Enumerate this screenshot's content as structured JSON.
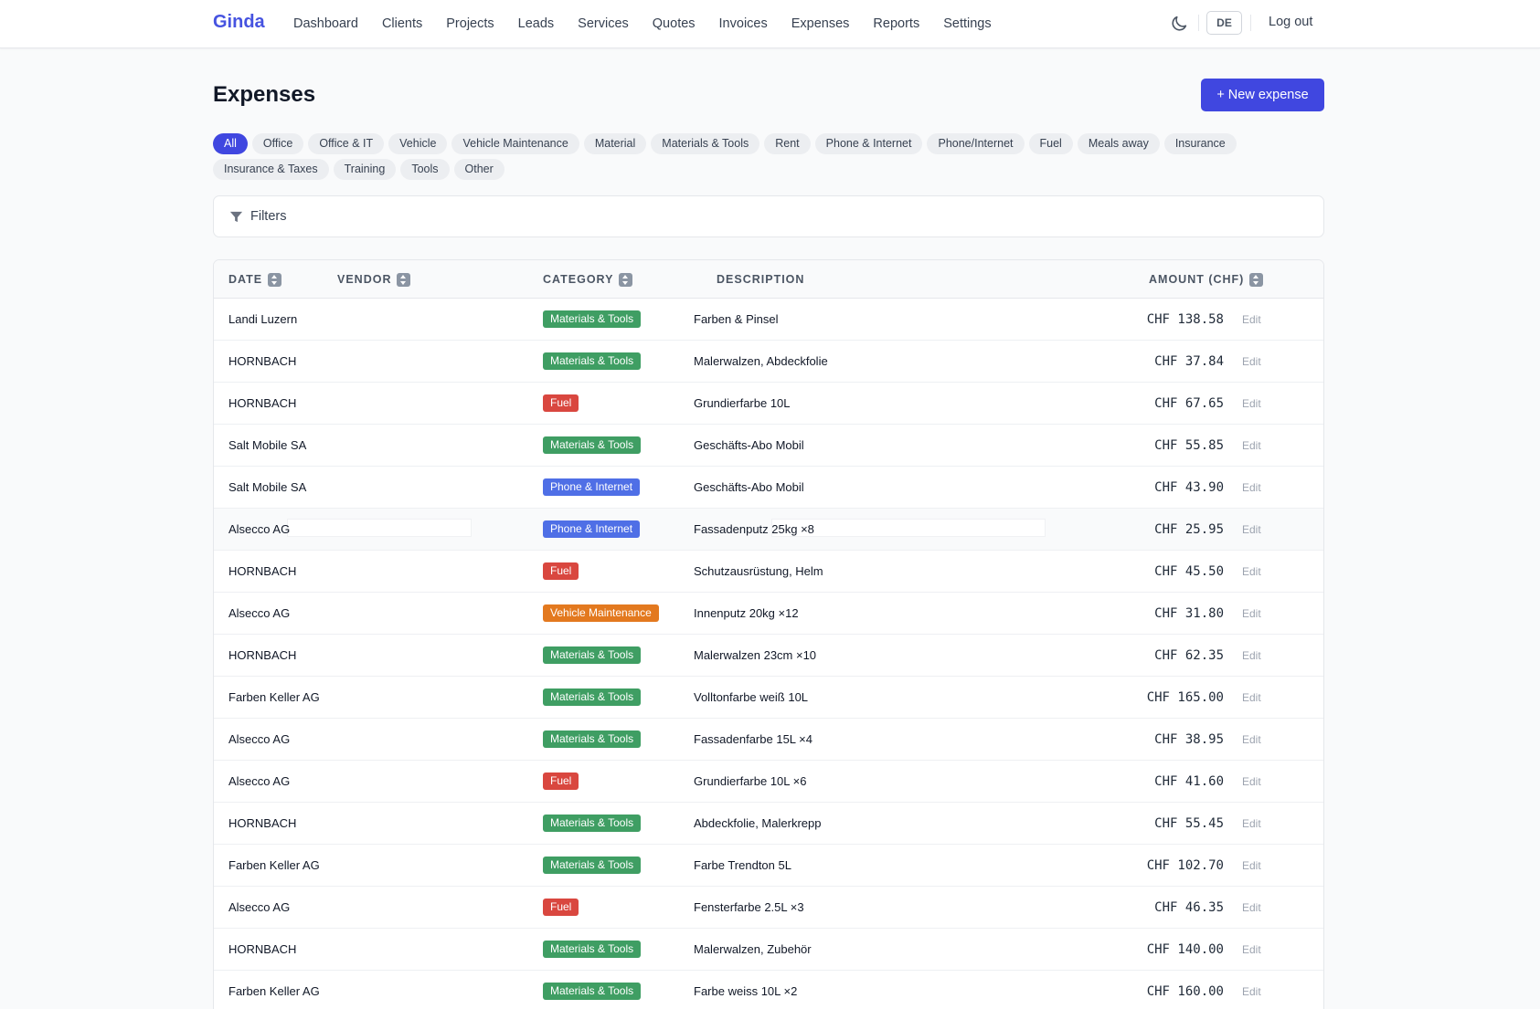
{
  "app": {
    "brand": "Ginda",
    "nav": [
      "Dashboard",
      "Clients",
      "Projects",
      "Leads",
      "Services",
      "Quotes",
      "Invoices",
      "Expenses",
      "Reports",
      "Settings"
    ],
    "lang": "DE",
    "logout": "Log out"
  },
  "page": {
    "title": "Expenses",
    "new_button": "+ New expense"
  },
  "chips": [
    "All",
    "Office",
    "Office & IT",
    "Vehicle",
    "Vehicle Maintenance",
    "Material",
    "Materials & Tools",
    "Rent",
    "Phone & Internet",
    "Phone/Internet",
    "Fuel",
    "Meals away",
    "Insurance",
    "Insurance & Taxes",
    "Training",
    "Tools",
    "Other"
  ],
  "active_chip": "All",
  "filters": {
    "label": "Filters"
  },
  "table": {
    "headers": {
      "date": "DATE",
      "vendor": "VENDOR",
      "category": "CATEGORY",
      "description": "DESCRIPTION",
      "amount": "AMOUNT (CHF)"
    },
    "edit_label": "Edit",
    "category_colors": {
      "Materials & Tools": "#3f9e63",
      "Fuel": "#d9473f",
      "Phone & Internet": "#4f6fe6",
      "Vehicle Maintenance": "#e3791f"
    },
    "rows": [
      {
        "vendor": "Landi Luzern",
        "category": "Materials & Tools",
        "description": "Farben & Pinsel",
        "amount": "CHF 138.58"
      },
      {
        "vendor": "HORNBACH",
        "category": "Materials & Tools",
        "description": "Malerwalzen, Abdeckfolie",
        "amount": "CHF 37.84"
      },
      {
        "vendor": "HORNBACH",
        "category": "Fuel",
        "description": "Grundierfarbe 10L",
        "amount": "CHF 67.65"
      },
      {
        "vendor": "Salt Mobile SA",
        "category": "Materials & Tools",
        "description": "Geschäfts-Abo Mobil",
        "amount": "CHF 55.85"
      },
      {
        "vendor": "Salt Mobile SA",
        "category": "Phone & Internet",
        "description": "Geschäfts-Abo Mobil",
        "amount": "CHF 43.90"
      },
      {
        "vendor": "Alsecco AG",
        "category": "Phone & Internet",
        "description": "Fassadenputz 25kg ×8",
        "amount": "CHF 25.95"
      },
      {
        "vendor": "HORNBACH",
        "category": "Fuel",
        "description": "Schutzausrüstung, Helm",
        "amount": "CHF 45.50"
      },
      {
        "vendor": "Alsecco AG",
        "category": "Vehicle Maintenance",
        "description": "Innenputz 20kg ×12",
        "amount": "CHF 31.80"
      },
      {
        "vendor": "HORNBACH",
        "category": "Materials & Tools",
        "description": "Malerwalzen 23cm ×10",
        "amount": "CHF 62.35"
      },
      {
        "vendor": "Farben Keller AG",
        "category": "Materials & Tools",
        "description": "Volltonfarbe weiß 10L",
        "amount": "CHF 165.00"
      },
      {
        "vendor": "Alsecco AG",
        "category": "Materials & Tools",
        "description": "Fassadenfarbe 15L ×4",
        "amount": "CHF 38.95"
      },
      {
        "vendor": "Alsecco AG",
        "category": "Fuel",
        "description": "Grundierfarbe 10L ×6",
        "amount": "CHF 41.60"
      },
      {
        "vendor": "HORNBACH",
        "category": "Materials & Tools",
        "description": "Abdeckfolie, Malerkrepp",
        "amount": "CHF 55.45"
      },
      {
        "vendor": "Farben Keller AG",
        "category": "Materials & Tools",
        "description": "Farbe Trendton 5L",
        "amount": "CHF 102.70"
      },
      {
        "vendor": "Alsecco AG",
        "category": "Fuel",
        "description": "Fensterfarbe 2.5L ×3",
        "amount": "CHF 46.35"
      },
      {
        "vendor": "HORNBACH",
        "category": "Materials & Tools",
        "description": "Malerwalzen, Zubehör",
        "amount": "CHF 140.00"
      },
      {
        "vendor": "Farben Keller AG",
        "category": "Materials & Tools",
        "description": "Farbe weiss 10L ×2",
        "amount": "CHF 160.00"
      }
    ]
  }
}
